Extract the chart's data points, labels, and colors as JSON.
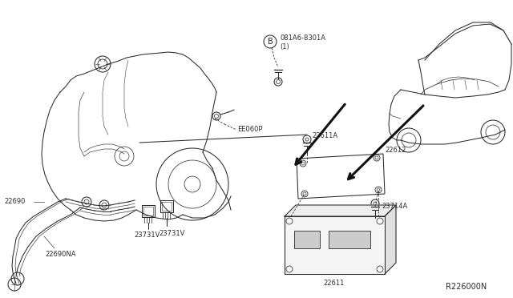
{
  "background_color": "#ffffff",
  "line_color": "#2a2a2a",
  "figsize": [
    6.4,
    3.72
  ],
  "dpi": 100,
  "lw": 0.75,
  "font_size": 6.0,
  "labels": {
    "part_B": "B",
    "bolt_ref_line1": "081A6-8301A",
    "bolt_ref_line2": "(1)",
    "EE060P": "EE060P",
    "22611A": "22611A",
    "22612": "22612",
    "23714A": "23714A",
    "22611": "22611",
    "22690": "22690",
    "22690NA": "22690NA",
    "23731V_1": "23731V",
    "23731V_2": "23731V",
    "R226000N": "R226000N"
  }
}
